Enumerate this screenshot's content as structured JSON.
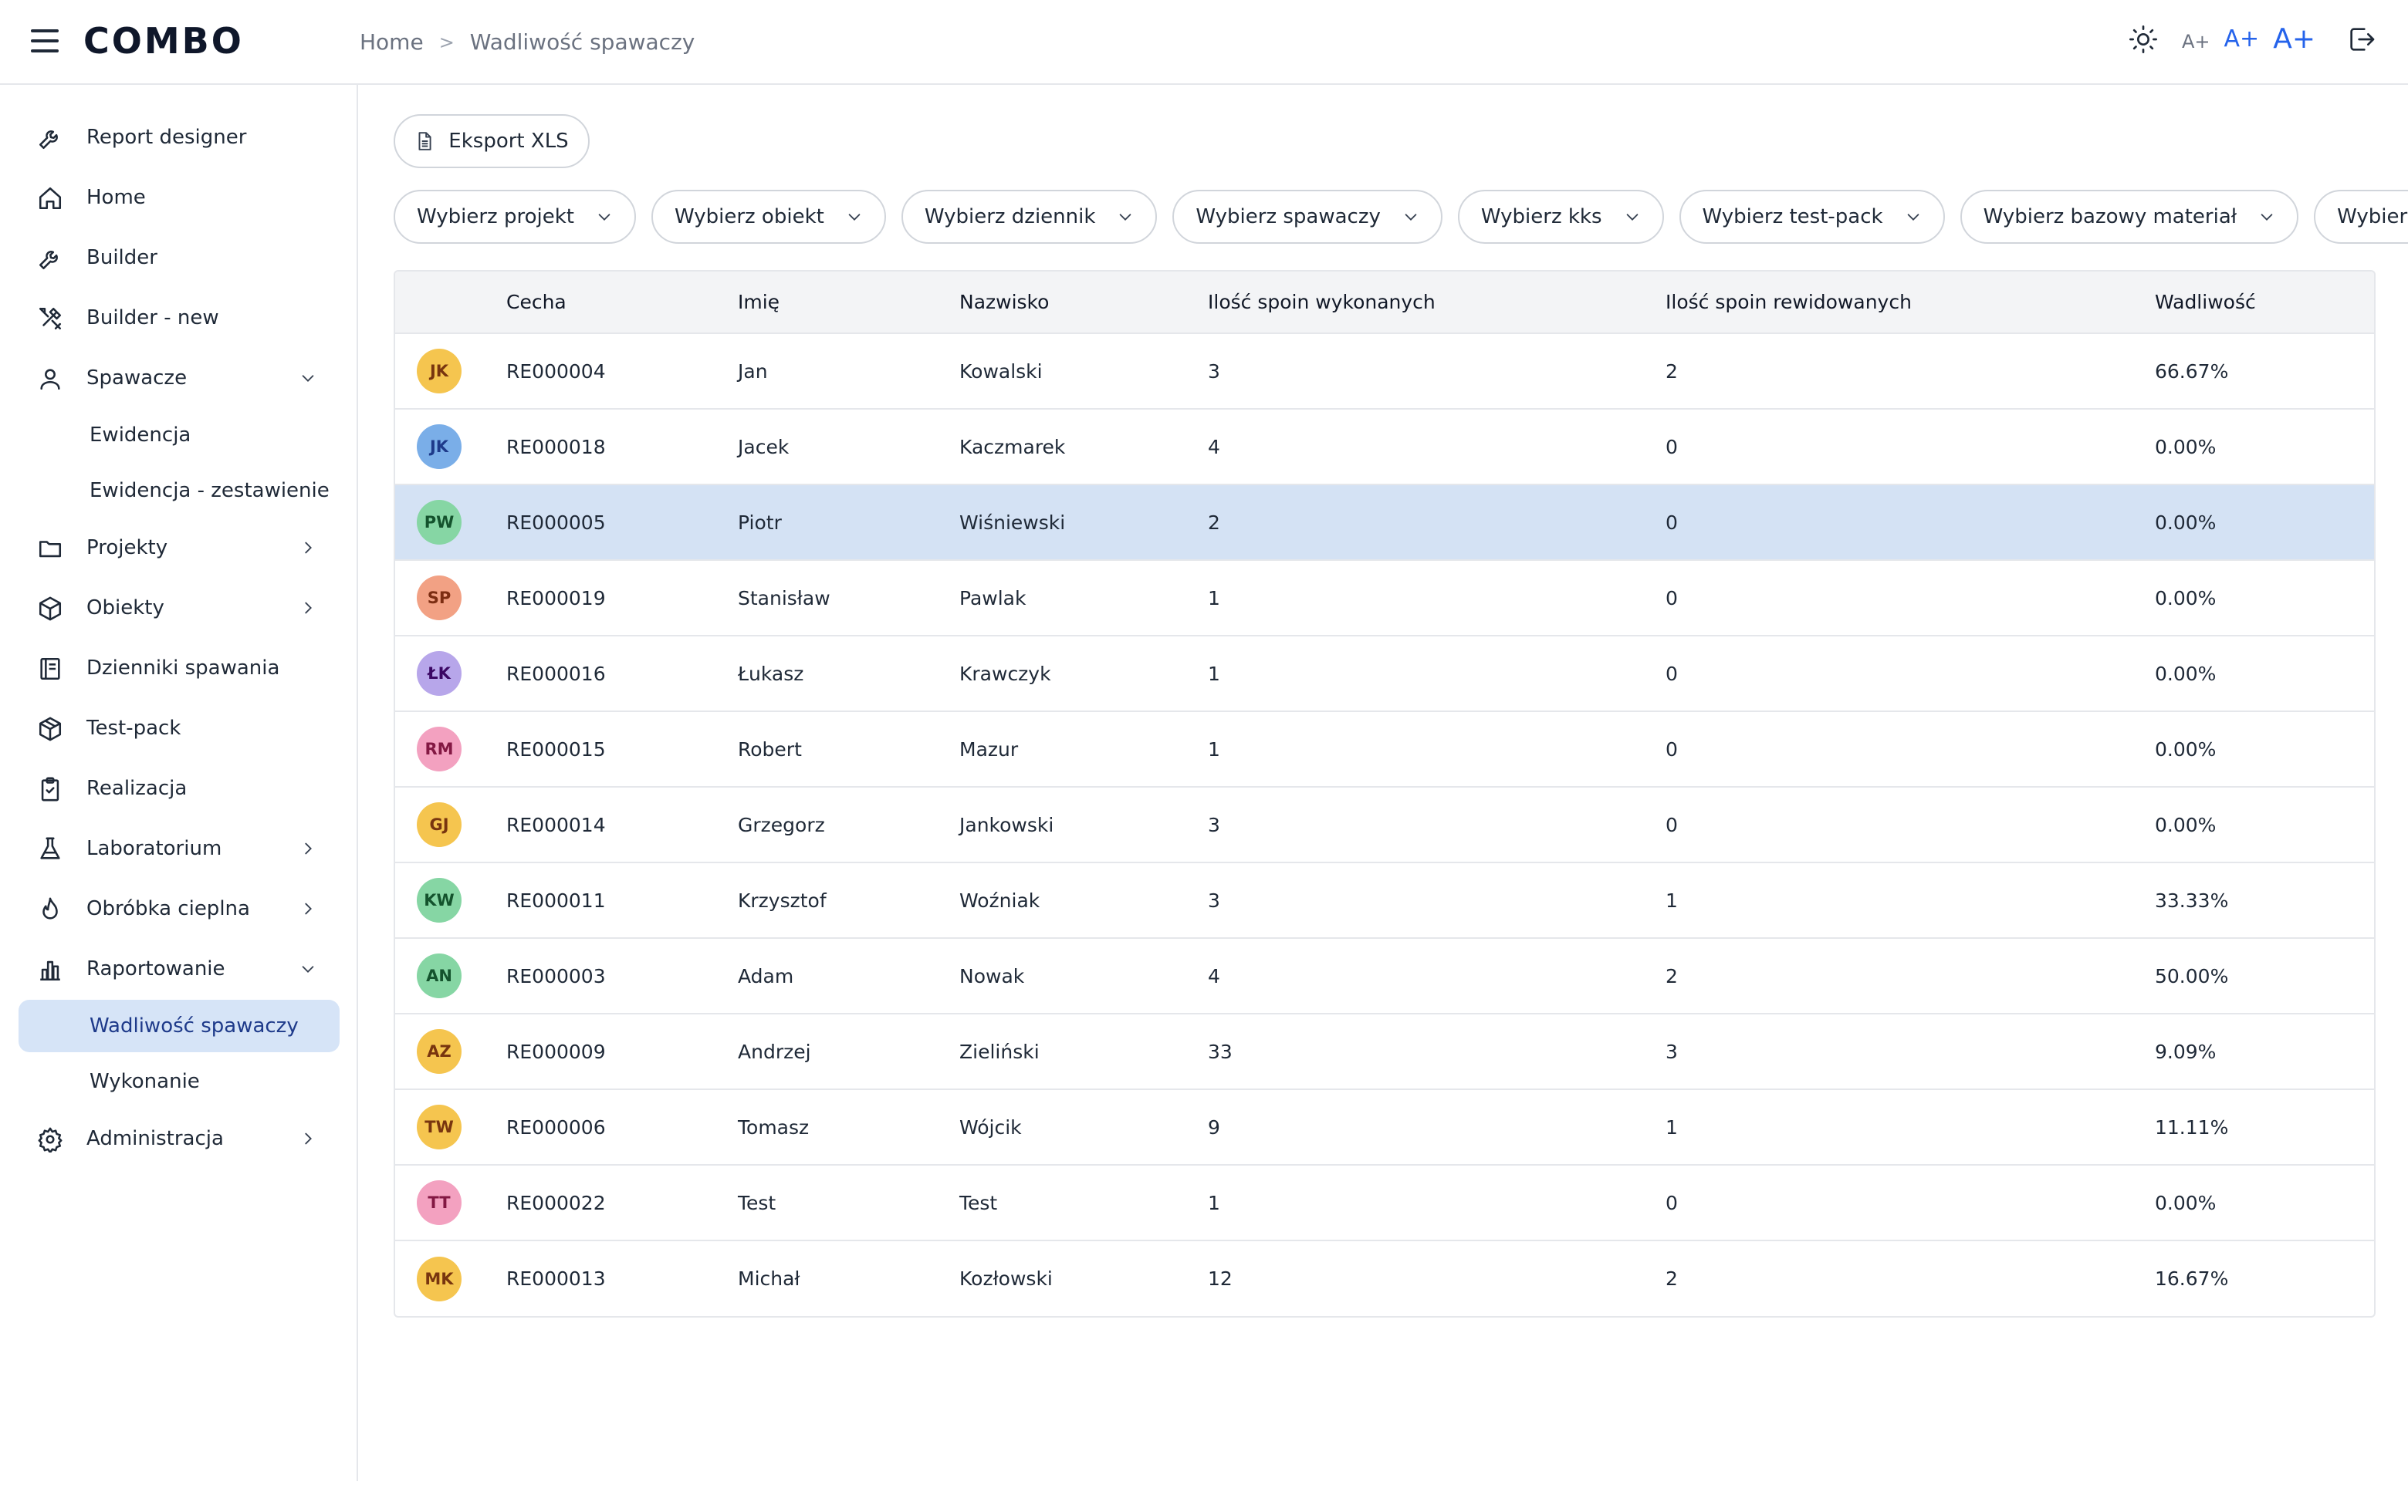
{
  "header": {
    "logo": "COMBO",
    "breadcrumb": {
      "home": "Home",
      "sep": ">",
      "current": "Wadliwość spawaczy"
    },
    "font_small": "A+",
    "font_medium": "A+",
    "font_large": "A+"
  },
  "sidebar": {
    "items": [
      {
        "label": "Report designer",
        "icon": "wrench-icon"
      },
      {
        "label": "Home",
        "icon": "home-icon"
      },
      {
        "label": "Builder",
        "icon": "wrench-icon"
      },
      {
        "label": "Builder - new",
        "icon": "tools-icon"
      },
      {
        "label": "Spawacze",
        "icon": "user-icon",
        "expanded": true
      },
      {
        "label": "Ewidencja"
      },
      {
        "label": "Ewidencja - zestawienie"
      },
      {
        "label": "Projekty",
        "icon": "folder-icon"
      },
      {
        "label": "Obiekty",
        "icon": "cube-icon"
      },
      {
        "label": "Dzienniki spawania",
        "icon": "book-icon"
      },
      {
        "label": "Test-pack",
        "icon": "package-icon"
      },
      {
        "label": "Realizacja",
        "icon": "clipboard-check-icon"
      },
      {
        "label": "Laboratorium",
        "icon": "flask-icon"
      },
      {
        "label": "Obróbka cieplna",
        "icon": "flame-icon"
      },
      {
        "label": "Raportowanie",
        "icon": "bar-chart-icon",
        "expanded": true
      },
      {
        "label": "Wadliwość spawaczy",
        "active": true
      },
      {
        "label": "Wykonanie"
      },
      {
        "label": "Administracja",
        "icon": "gear-icon"
      }
    ]
  },
  "toolbar": {
    "export_label": "Eksport XLS"
  },
  "filters": [
    "Wybierz projekt",
    "Wybierz obiekt",
    "Wybierz dziennik",
    "Wybierz spawaczy",
    "Wybierz kks",
    "Wybierz test-pack",
    "Wybierz bazowy materiał",
    "Wybierz dodatkowy m"
  ],
  "table": {
    "columns": [
      "",
      "Cecha",
      "Imię",
      "Nazwisko",
      "Ilość spoin wykonanych",
      "Ilość spoin rewidowanych",
      "Wadliwość"
    ],
    "rows": [
      {
        "initials": "JK",
        "color": "#f5c54f",
        "text_color": "#78350f",
        "cecha": "RE000004",
        "imie": "Jan",
        "nazwisko": "Kowalski",
        "wykonane": "3",
        "rewidowane": "2",
        "wadliwosc": "66.67%"
      },
      {
        "initials": "JK",
        "color": "#7aaee8",
        "text_color": "#1e3a8a",
        "cecha": "RE000018",
        "imie": "Jacek",
        "nazwisko": "Kaczmarek",
        "wykonane": "4",
        "rewidowane": "0",
        "wadliwosc": "0.00%"
      },
      {
        "initials": "PW",
        "color": "#86d6a4",
        "text_color": "#14532d",
        "cecha": "RE000005",
        "imie": "Piotr",
        "nazwisko": "Wiśniewski",
        "wykonane": "2",
        "rewidowane": "0",
        "wadliwosc": "0.00%",
        "selected": true
      },
      {
        "initials": "SP",
        "color": "#f2a184",
        "text_color": "#7c2d12",
        "cecha": "RE000019",
        "imie": "Stanisław",
        "nazwisko": "Pawlak",
        "wykonane": "1",
        "rewidowane": "0",
        "wadliwosc": "0.00%"
      },
      {
        "initials": "ŁK",
        "color": "#b7a6ea",
        "text_color": "#3b0764",
        "cecha": "RE000016",
        "imie": "Łukasz",
        "nazwisko": "Krawczyk",
        "wykonane": "1",
        "rewidowane": "0",
        "wadliwosc": "0.00%"
      },
      {
        "initials": "RM",
        "color": "#f3a1c0",
        "text_color": "#831843",
        "cecha": "RE000015",
        "imie": "Robert",
        "nazwisko": "Mazur",
        "wykonane": "1",
        "rewidowane": "0",
        "wadliwosc": "0.00%"
      },
      {
        "initials": "GJ",
        "color": "#f5c54f",
        "text_color": "#78350f",
        "cecha": "RE000014",
        "imie": "Grzegorz",
        "nazwisko": "Jankowski",
        "wykonane": "3",
        "rewidowane": "0",
        "wadliwosc": "0.00%"
      },
      {
        "initials": "KW",
        "color": "#86d6a4",
        "text_color": "#14532d",
        "cecha": "RE000011",
        "imie": "Krzysztof",
        "nazwisko": "Woźniak",
        "wykonane": "3",
        "rewidowane": "1",
        "wadliwosc": "33.33%"
      },
      {
        "initials": "AN",
        "color": "#86d6a4",
        "text_color": "#14532d",
        "cecha": "RE000003",
        "imie": "Adam",
        "nazwisko": "Nowak",
        "wykonane": "4",
        "rewidowane": "2",
        "wadliwosc": "50.00%"
      },
      {
        "initials": "AZ",
        "color": "#f5c54f",
        "text_color": "#78350f",
        "cecha": "RE000009",
        "imie": "Andrzej",
        "nazwisko": "Zieliński",
        "wykonane": "33",
        "rewidowane": "3",
        "wadliwosc": "9.09%"
      },
      {
        "initials": "TW",
        "color": "#f5c54f",
        "text_color": "#78350f",
        "cecha": "RE000006",
        "imie": "Tomasz",
        "nazwisko": "Wójcik",
        "wykonane": "9",
        "rewidowane": "1",
        "wadliwosc": "11.11%"
      },
      {
        "initials": "TT",
        "color": "#f3a1c0",
        "text_color": "#831843",
        "cecha": "RE000022",
        "imie": "Test",
        "nazwisko": "Test",
        "wykonane": "1",
        "rewidowane": "0",
        "wadliwosc": "0.00%"
      },
      {
        "initials": "MK",
        "color": "#f5c54f",
        "text_color": "#78350f",
        "cecha": "RE000013",
        "imie": "Michał",
        "nazwisko": "Kozłowski",
        "wykonane": "12",
        "rewidowane": "2",
        "wadliwosc": "16.67%"
      }
    ]
  }
}
